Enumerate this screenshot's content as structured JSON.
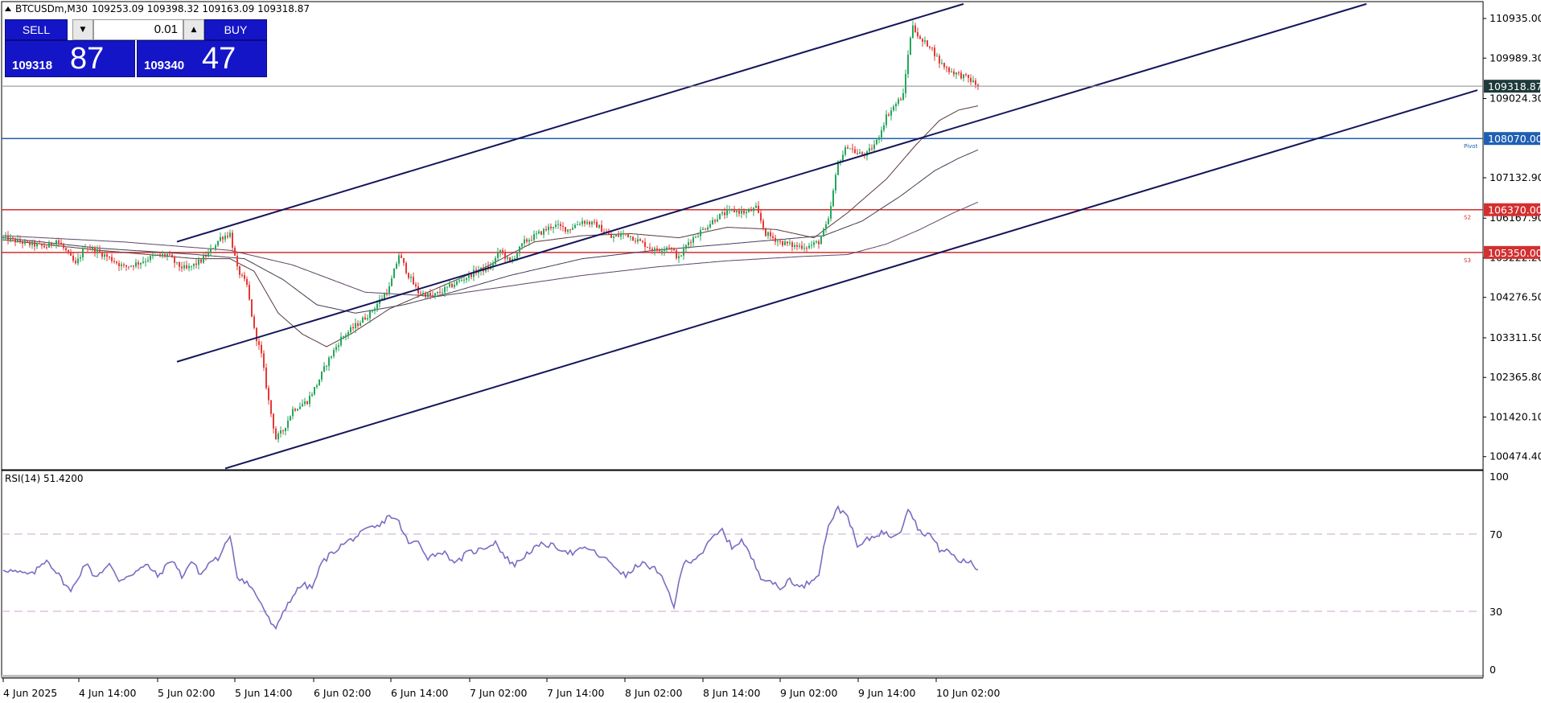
{
  "header": {
    "symbol": "BTCUSDm,M30",
    "ohlc": "109253.09 109398.32 109163.09 109318.87"
  },
  "trade_panel": {
    "sell_label": "SELL",
    "buy_label": "BUY",
    "lot": "0.01",
    "sell_price_small": "109318",
    "sell_price_big": "87",
    "buy_price_small": "109340",
    "buy_price_big": "47"
  },
  "chart_data": [
    {
      "type": "candlestick",
      "title": "BTCUSDm,M30",
      "y_ticks": [
        "110935.00",
        "109989.30",
        "109024.30",
        "107132.90",
        "106167.90",
        "105222.20",
        "104276.50",
        "103311.50",
        "102365.80",
        "101420.10",
        "100474.40"
      ],
      "x_ticks": [
        "4 Jun 2025",
        "4 Jun 14:00",
        "5 Jun 02:00",
        "5 Jun 14:00",
        "6 Jun 02:00",
        "6 Jun 14:00",
        "7 Jun 02:00",
        "7 Jun 14:00",
        "8 Jun 02:00",
        "8 Jun 14:00",
        "9 Jun 02:00",
        "9 Jun 14:00",
        "10 Jun 02:00"
      ],
      "ylim": [
        100200,
        111300
      ],
      "current_price": "109318.87",
      "levels": [
        {
          "value": 108070,
          "label": "108070.00",
          "tag": "Pivot",
          "color": "#1f5fb3"
        },
        {
          "value": 106370,
          "label": "106370.00",
          "tag": "S2",
          "color": "#d32f2f"
        },
        {
          "value": 105350,
          "label": "105350.00",
          "tag": "S3",
          "color": "#d32f2f"
        }
      ],
      "channel_lines": [
        {
          "from": {
            "i": 72,
            "price": 105605
          },
          "to": {
            "i": 398,
            "price": 111283
          }
        },
        {
          "from": {
            "i": 72,
            "price": 102740
          },
          "to": {
            "i": 565,
            "price": 111283
          }
        },
        {
          "from": {
            "i": 92,
            "price": 100192
          },
          "to": {
            "i": 611,
            "price": 109225
          }
        }
      ],
      "bullish_color": "#26a65b",
      "bearish_color": "#e53935",
      "close_path": [
        [
          0,
          105700
        ],
        [
          10,
          105560
        ],
        [
          18,
          105480
        ],
        [
          22,
          105650
        ],
        [
          26,
          105380
        ],
        [
          30,
          105050
        ],
        [
          34,
          105500
        ],
        [
          40,
          105350
        ],
        [
          46,
          105150
        ],
        [
          50,
          105000
        ],
        [
          56,
          105100
        ],
        [
          62,
          105250
        ],
        [
          68,
          105300
        ],
        [
          72,
          105050
        ],
        [
          76,
          104950
        ],
        [
          82,
          105150
        ],
        [
          86,
          105400
        ],
        [
          90,
          105700
        ],
        [
          94,
          105800
        ],
        [
          97,
          104950
        ],
        [
          101,
          104550
        ],
        [
          104,
          103500
        ],
        [
          107,
          102900
        ],
        [
          110,
          101800
        ],
        [
          113,
          100900
        ],
        [
          116,
          101100
        ],
        [
          120,
          101600
        ],
        [
          126,
          101800
        ],
        [
          130,
          102200
        ],
        [
          134,
          102700
        ],
        [
          140,
          103300
        ],
        [
          146,
          103600
        ],
        [
          152,
          103900
        ],
        [
          156,
          104200
        ],
        [
          160,
          104500
        ],
        [
          164,
          105300
        ],
        [
          168,
          104800
        ],
        [
          172,
          104400
        ],
        [
          178,
          104300
        ],
        [
          184,
          104500
        ],
        [
          190,
          104700
        ],
        [
          196,
          104900
        ],
        [
          202,
          105000
        ],
        [
          206,
          105400
        ],
        [
          210,
          105100
        ],
        [
          216,
          105600
        ],
        [
          222,
          105800
        ],
        [
          228,
          106000
        ],
        [
          234,
          105900
        ],
        [
          240,
          106100
        ],
        [
          246,
          106000
        ],
        [
          252,
          105700
        ],
        [
          258,
          105800
        ],
        [
          264,
          105600
        ],
        [
          270,
          105400
        ],
        [
          276,
          105500
        ],
        [
          280,
          105200
        ],
        [
          284,
          105600
        ],
        [
          290,
          105900
        ],
        [
          296,
          106200
        ],
        [
          302,
          106350
        ],
        [
          308,
          106300
        ],
        [
          312,
          106400
        ],
        [
          316,
          105800
        ],
        [
          322,
          105600
        ],
        [
          328,
          105500
        ],
        [
          334,
          105500
        ],
        [
          338,
          105600
        ],
        [
          342,
          106100
        ],
        [
          346,
          107500
        ],
        [
          350,
          107900
        ],
        [
          354,
          107700
        ],
        [
          358,
          107700
        ],
        [
          362,
          108000
        ],
        [
          366,
          108600
        ],
        [
          370,
          108900
        ],
        [
          373,
          109100
        ],
        [
          375,
          110100
        ],
        [
          377,
          110800
        ],
        [
          380,
          110400
        ],
        [
          384,
          110300
        ],
        [
          388,
          109900
        ],
        [
          392,
          109700
        ],
        [
          396,
          109600
        ],
        [
          400,
          109500
        ],
        [
          404,
          109318.87
        ]
      ],
      "moving_averages": [
        {
          "color": "#5a3a3a",
          "path": [
            [
              0,
              105650
            ],
            [
              40,
              105400
            ],
            [
              80,
              105200
            ],
            [
              94,
              105200
            ],
            [
              104,
              104900
            ],
            [
              114,
              103900
            ],
            [
              124,
              103400
            ],
            [
              134,
              103100
            ],
            [
              144,
              103400
            ],
            [
              160,
              104000
            ],
            [
              180,
              104500
            ],
            [
              200,
              105000
            ],
            [
              220,
              105600
            ],
            [
              240,
              105750
            ],
            [
              260,
              105800
            ],
            [
              280,
              105700
            ],
            [
              300,
              105950
            ],
            [
              320,
              105900
            ],
            [
              336,
              105700
            ],
            [
              350,
              106300
            ],
            [
              366,
              107100
            ],
            [
              378,
              107900
            ],
            [
              388,
              108500
            ],
            [
              396,
              108750
            ],
            [
              404,
              108850
            ]
          ]
        },
        {
          "color": "#463c56",
          "path": [
            [
              0,
              105700
            ],
            [
              40,
              105450
            ],
            [
              80,
              105300
            ],
            [
              100,
              105200
            ],
            [
              116,
              104700
            ],
            [
              130,
              104100
            ],
            [
              146,
              103900
            ],
            [
              166,
              104100
            ],
            [
              186,
              104400
            ],
            [
              210,
              104800
            ],
            [
              240,
              105200
            ],
            [
              270,
              105400
            ],
            [
              300,
              105550
            ],
            [
              320,
              105650
            ],
            [
              340,
              105750
            ],
            [
              356,
              106100
            ],
            [
              372,
              106700
            ],
            [
              386,
              107300
            ],
            [
              396,
              107600
            ],
            [
              404,
              107800
            ]
          ]
        },
        {
          "color": "#5c4666",
          "path": [
            [
              0,
              105750
            ],
            [
              50,
              105600
            ],
            [
              94,
              105400
            ],
            [
              120,
              105050
            ],
            [
              150,
              104400
            ],
            [
              180,
              104300
            ],
            [
              210,
              104550
            ],
            [
              240,
              104800
            ],
            [
              270,
              105000
            ],
            [
              300,
              105150
            ],
            [
              330,
              105250
            ],
            [
              350,
              105300
            ],
            [
              366,
              105550
            ],
            [
              380,
              105900
            ],
            [
              394,
              106300
            ],
            [
              404,
              106550
            ]
          ]
        }
      ]
    },
    {
      "type": "line",
      "title": "RSI(14) 51.4200",
      "ylim": [
        0,
        100
      ],
      "y_ticks": [
        "100",
        "70",
        "30",
        "0"
      ],
      "levels": [
        70,
        30
      ],
      "line_color": "#7b6cc2",
      "series": [
        {
          "name": "RSI(14)",
          "values": [
            [
              0,
              52
            ],
            [
              6,
              50
            ],
            [
              12,
              49
            ],
            [
              18,
              57
            ],
            [
              24,
              47
            ],
            [
              28,
              40
            ],
            [
              34,
              55
            ],
            [
              38,
              48
            ],
            [
              44,
              54
            ],
            [
              48,
              46
            ],
            [
              54,
              50
            ],
            [
              60,
              54
            ],
            [
              64,
              48
            ],
            [
              70,
              57
            ],
            [
              74,
              48
            ],
            [
              78,
              56
            ],
            [
              82,
              49
            ],
            [
              86,
              56
            ],
            [
              90,
              58
            ],
            [
              94,
              70
            ],
            [
              97,
              48
            ],
            [
              101,
              45
            ],
            [
              104,
              40
            ],
            [
              107,
              34
            ],
            [
              110,
              26
            ],
            [
              113,
              20
            ],
            [
              116,
              30
            ],
            [
              120,
              38
            ],
            [
              124,
              44
            ],
            [
              128,
              42
            ],
            [
              132,
              55
            ],
            [
              136,
              60
            ],
            [
              140,
              64
            ],
            [
              144,
              67
            ],
            [
              148,
              70
            ],
            [
              152,
              73
            ],
            [
              156,
              74
            ],
            [
              160,
              80
            ],
            [
              164,
              76
            ],
            [
              168,
              65
            ],
            [
              172,
              66
            ],
            [
              176,
              58
            ],
            [
              182,
              61
            ],
            [
              188,
              55
            ],
            [
              192,
              60
            ],
            [
              198,
              62
            ],
            [
              204,
              66
            ],
            [
              208,
              58
            ],
            [
              212,
              54
            ],
            [
              218,
              61
            ],
            [
              224,
              65
            ],
            [
              230,
              63
            ],
            [
              236,
              60
            ],
            [
              242,
              63
            ],
            [
              248,
              58
            ],
            [
              252,
              55
            ],
            [
              258,
              48
            ],
            [
              264,
              55
            ],
            [
              270,
              52
            ],
            [
              274,
              45
            ],
            [
              278,
              33
            ],
            [
              282,
              55
            ],
            [
              286,
              57
            ],
            [
              290,
              61
            ],
            [
              294,
              68
            ],
            [
              298,
              72
            ],
            [
              302,
              63
            ],
            [
              306,
              67
            ],
            [
              310,
              58
            ],
            [
              314,
              48
            ],
            [
              318,
              46
            ],
            [
              322,
              41
            ],
            [
              326,
              47
            ],
            [
              330,
              42
            ],
            [
              334,
              45
            ],
            [
              338,
              50
            ],
            [
              342,
              75
            ],
            [
              346,
              83
            ],
            [
              350,
              80
            ],
            [
              354,
              63
            ],
            [
              358,
              67
            ],
            [
              364,
              71
            ],
            [
              368,
              69
            ],
            [
              372,
              72
            ],
            [
              375,
              84
            ],
            [
              380,
              71
            ],
            [
              384,
              70
            ],
            [
              388,
              62
            ],
            [
              392,
              61
            ],
            [
              396,
              56
            ],
            [
              400,
              56
            ],
            [
              404,
              51.42
            ]
          ]
        }
      ]
    }
  ]
}
